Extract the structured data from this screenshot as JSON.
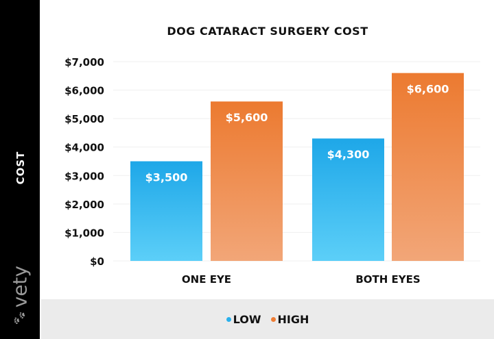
{
  "chart_data": {
    "type": "bar",
    "title": "DOG CATARACT SURGERY COST",
    "ylabel": "COST",
    "xlabel": "",
    "categories": [
      "ONE EYE",
      "BOTH EYES"
    ],
    "series": [
      {
        "name": "LOW",
        "values": [
          3500,
          4300
        ],
        "labels": [
          "$3,500",
          "$4,300"
        ],
        "color": "#29b0ec"
      },
      {
        "name": "HIGH",
        "values": [
          5600,
          6600
        ],
        "labels": [
          "$5,600",
          "$6,600"
        ],
        "color": "#ee7d35"
      }
    ],
    "ylim": [
      0,
      7000
    ],
    "yticks": [
      0,
      1000,
      2000,
      3000,
      4000,
      5000,
      6000,
      7000
    ],
    "ytick_labels": [
      "$0",
      "$1,000",
      "$2,000",
      "$3,000",
      "$4,000",
      "$5,000",
      "$6,000",
      "$7,000"
    ],
    "grid": true,
    "legend_position": "bottom"
  },
  "brand": {
    "logo_text": "vety",
    "icon": "paw-icon"
  }
}
